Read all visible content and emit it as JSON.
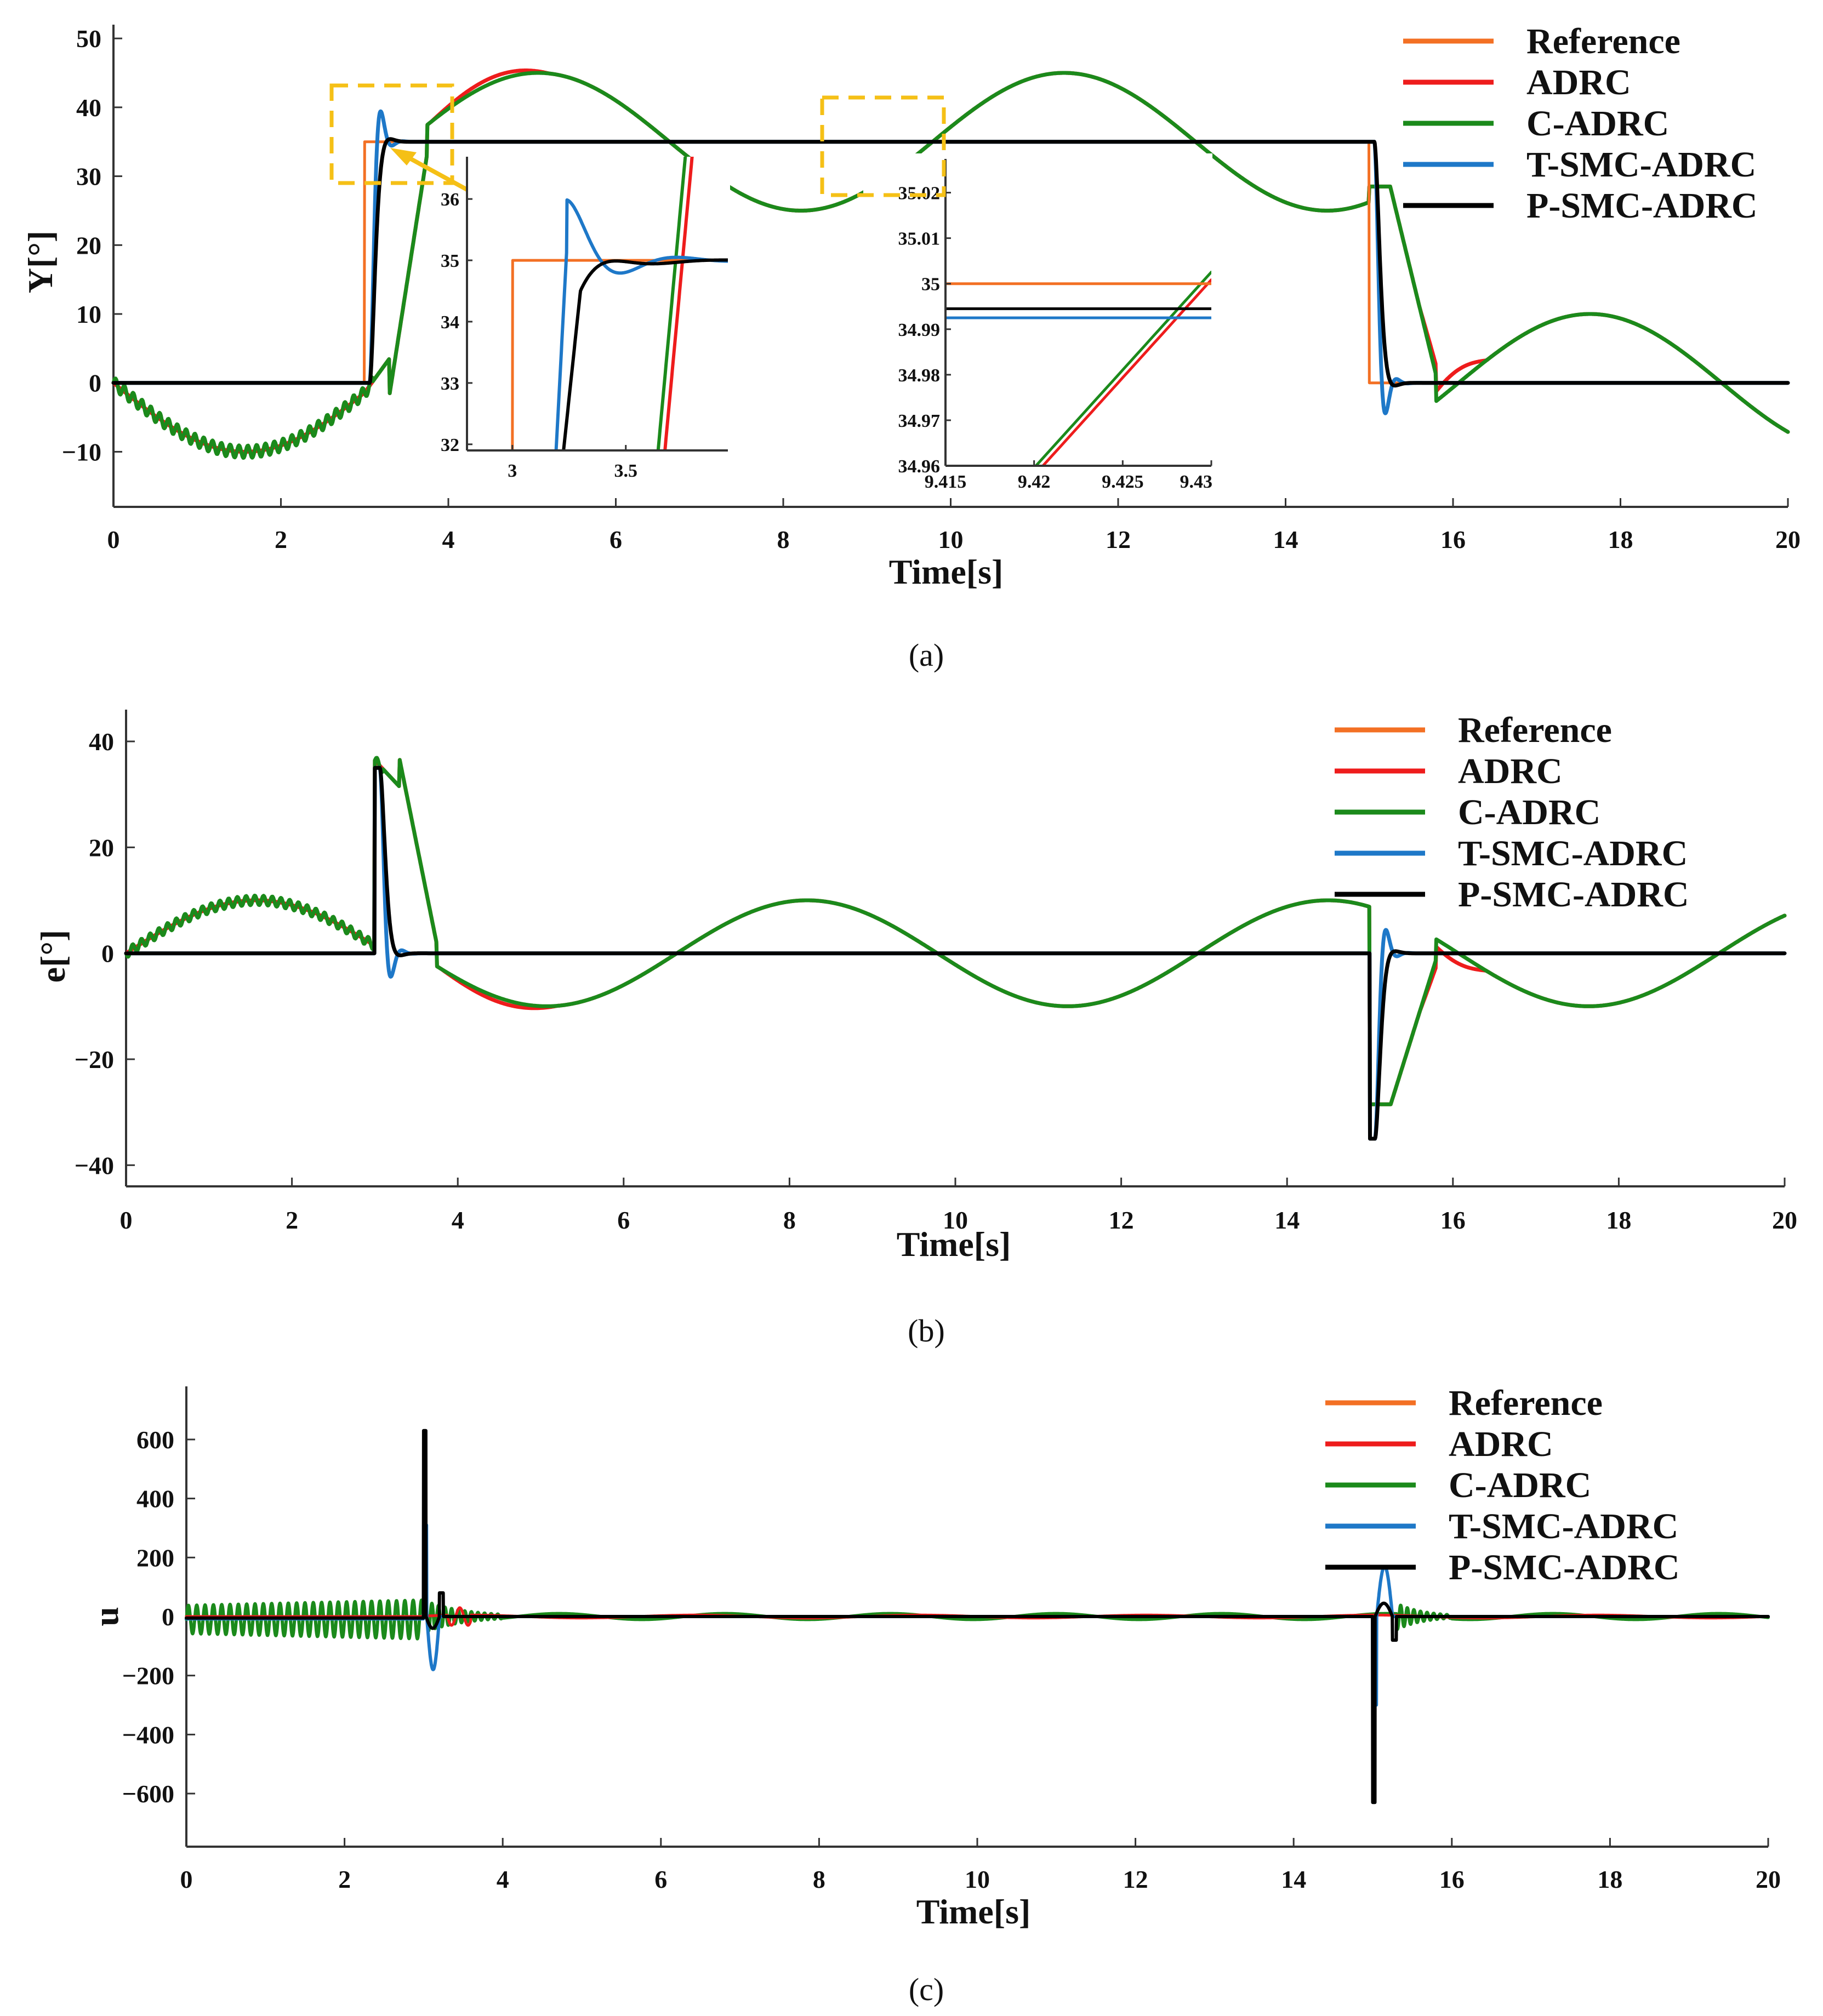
{
  "colors": {
    "reference": "#F37024",
    "adrc": "#EE1C1C",
    "c_adrc": "#1B8A1B",
    "t_smc_adrc": "#1E78C8",
    "p_smc_adrc": "#000000",
    "zoom_box": "#F5C016"
  },
  "legend": [
    "Reference",
    "ADRC",
    "C-ADRC",
    "T-SMC-ADRC",
    "P-SMC-ADRC"
  ],
  "chart_data": [
    {
      "type": "line",
      "caption": "(a)",
      "xlabel": "Time[s]",
      "ylabel": "Y[°]",
      "xlim": [
        0,
        20
      ],
      "ylim": [
        -18,
        52
      ],
      "xticks": [
        "0",
        "2",
        "4",
        "6",
        "8",
        "10",
        "12",
        "14",
        "16",
        "18",
        "20"
      ],
      "yticks": [
        "50",
        "40",
        "30",
        "20",
        "10",
        "0",
        "−10"
      ],
      "series_notes": {
        "Reference": "step 0 → 35 at t=3 s, 35 → 0 at t=15 s",
        "ADRC/C-ADRC": "track 35 + 10·sin(t−3.05·) style oscillation between about 25 and 45",
        "T-SMC-ADRC/P-SMC-ADRC": "fast tracking of reference with small overshoot"
      },
      "insets": [
        {
          "xticks": [
            "3",
            "3.5"
          ],
          "yticks": [
            "36",
            "35",
            "34",
            "33",
            "32"
          ],
          "xlim": [
            2.8,
            3.95
          ],
          "ylim": [
            31.9,
            36.6
          ]
        },
        {
          "xticks": [
            "9.415",
            "9.42",
            "9.425",
            "9.43"
          ],
          "yticks": [
            "35.02",
            "35.01",
            "35",
            "34.99",
            "34.98",
            "34.97",
            "34.96"
          ],
          "xlim": [
            9.415,
            9.43
          ],
          "ylim": [
            34.96,
            35.025
          ],
          "values_at_zoom": {
            "Reference": 35.0,
            "P-SMC-ADRC": 34.9945,
            "T-SMC-ADRC": 34.9925
          }
        }
      ]
    },
    {
      "type": "line",
      "caption": "(b)",
      "xlabel": "Time[s]",
      "ylabel": "e[°]",
      "xlim": [
        0,
        20
      ],
      "ylim": [
        -44,
        46
      ],
      "xticks": [
        "0",
        "2",
        "4",
        "6",
        "8",
        "10",
        "12",
        "14",
        "16",
        "18",
        "20"
      ],
      "yticks": [
        "40",
        "20",
        "0",
        "−20",
        "−40"
      ],
      "peaks": {
        "positive_at_3s": 37,
        "negative_at_15s": -35
      }
    },
    {
      "type": "line",
      "caption": "(c)",
      "xlabel": "Time[s]",
      "ylabel": "u",
      "xlim": [
        0,
        20
      ],
      "ylim": [
        -780,
        780
      ],
      "xticks": [
        "0",
        "2",
        "4",
        "6",
        "8",
        "10",
        "12",
        "14",
        "16",
        "18",
        "20"
      ],
      "yticks": [
        "600",
        "400",
        "200",
        "0",
        "−200",
        "−400",
        "−600"
      ],
      "peaks": {
        "P-SMC-ADRC_max": 630,
        "P-SMC-ADRC_min": -630,
        "T-SMC-ADRC_max": 170,
        "T-SMC-ADRC_min": -180
      }
    }
  ]
}
